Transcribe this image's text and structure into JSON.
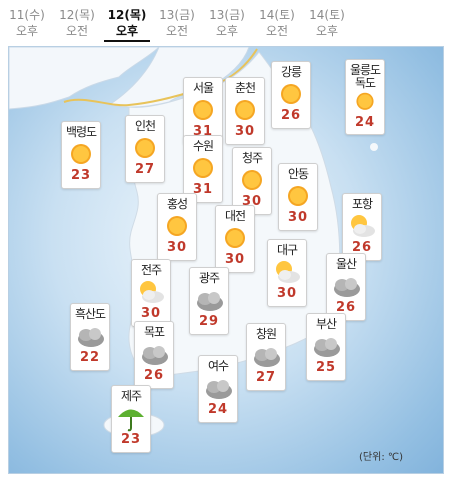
{
  "tabs": [
    {
      "date": "11(수)",
      "period": "오후"
    },
    {
      "date": "12(목)",
      "period": "오전"
    },
    {
      "date": "12(목)",
      "period": "오후"
    },
    {
      "date": "13(금)",
      "period": "오전"
    },
    {
      "date": "13(금)",
      "period": "오후"
    },
    {
      "date": "14(토)",
      "period": "오전"
    },
    {
      "date": "14(토)",
      "period": "오후"
    }
  ],
  "active_tab": 2,
  "colors": {
    "temperature": "#c0392b",
    "active_tab": "#111111",
    "inactive_tab": "#8a8a8a"
  },
  "cities": [
    {
      "name": "서울",
      "temp": "31",
      "icon": "sun-icon"
    },
    {
      "name": "춘천",
      "temp": "30",
      "icon": "sun-icon"
    },
    {
      "name": "강릉",
      "temp": "26",
      "icon": "sun-icon"
    },
    {
      "name": "울릉도",
      "name2": "독도",
      "temp": "24",
      "icon": "sun-icon"
    },
    {
      "name": "백령도",
      "temp": "23",
      "icon": "sun-icon"
    },
    {
      "name": "인천",
      "temp": "27",
      "icon": "sun-icon"
    },
    {
      "name": "수원",
      "temp": "31",
      "icon": "sun-icon"
    },
    {
      "name": "청주",
      "temp": "30",
      "icon": "sun-icon"
    },
    {
      "name": "안동",
      "temp": "30",
      "icon": "sun-icon"
    },
    {
      "name": "홍성",
      "temp": "30",
      "icon": "sun-icon"
    },
    {
      "name": "대전",
      "temp": "30",
      "icon": "sun-icon"
    },
    {
      "name": "포항",
      "temp": "26",
      "icon": "partly-cloudy-icon"
    },
    {
      "name": "전주",
      "temp": "30",
      "icon": "partly-cloudy-icon"
    },
    {
      "name": "대구",
      "temp": "30",
      "icon": "partly-cloudy-icon"
    },
    {
      "name": "광주",
      "temp": "29",
      "icon": "cloudy-icon"
    },
    {
      "name": "울산",
      "temp": "26",
      "icon": "cloudy-icon"
    },
    {
      "name": "흑산도",
      "temp": "22",
      "icon": "cloudy-icon"
    },
    {
      "name": "목포",
      "temp": "26",
      "icon": "cloudy-icon"
    },
    {
      "name": "창원",
      "temp": "27",
      "icon": "cloudy-icon"
    },
    {
      "name": "부산",
      "temp": "25",
      "icon": "cloudy-icon"
    },
    {
      "name": "여수",
      "temp": "24",
      "icon": "cloudy-icon"
    },
    {
      "name": "제주",
      "temp": "23",
      "icon": "umbrella-icon"
    }
  ],
  "unit_label": "(단위: ℃)"
}
